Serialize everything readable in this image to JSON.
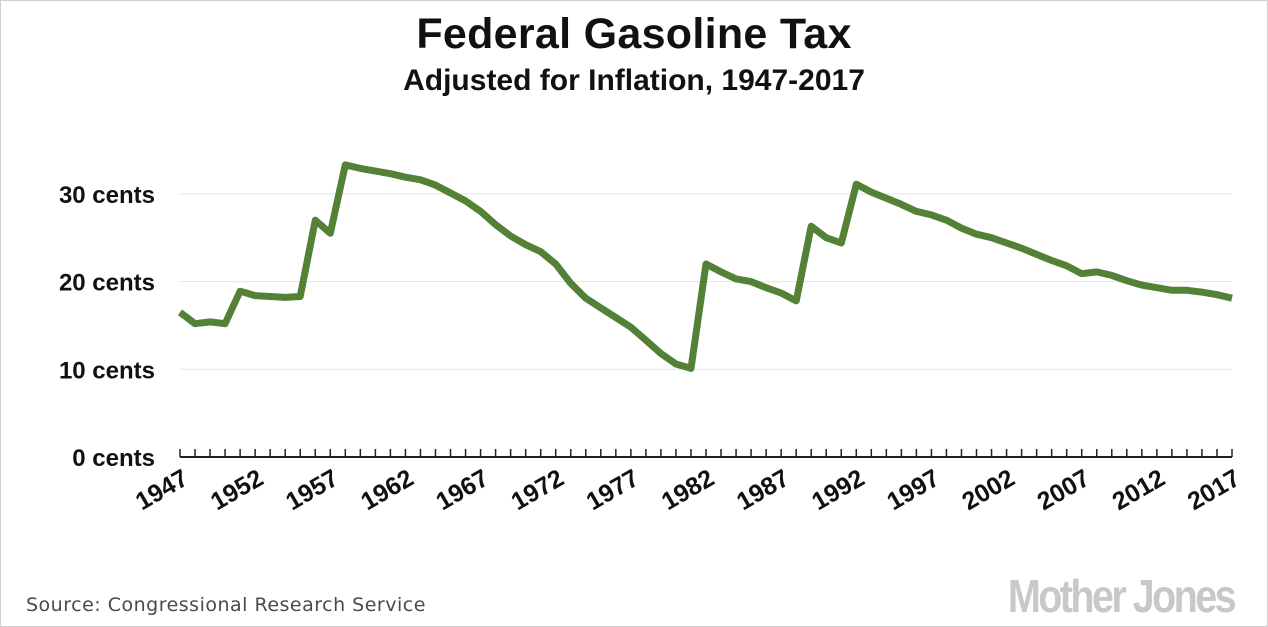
{
  "chart_data": {
    "type": "line",
    "title": "Federal Gasoline Tax",
    "subtitle": "Adjusted for Inflation, 1947-2017",
    "xlabel": "",
    "ylabel": "",
    "xlim": [
      1947,
      2017
    ],
    "ylim": [
      0,
      35
    ],
    "y_ticks": [
      {
        "value": 0,
        "label": "0 cents"
      },
      {
        "value": 10,
        "label": "10 cents"
      },
      {
        "value": 20,
        "label": "20 cents"
      },
      {
        "value": 30,
        "label": "30 cents"
      }
    ],
    "x_ticks": [
      {
        "value": 1947,
        "label": "1947"
      },
      {
        "value": 1952,
        "label": "1952"
      },
      {
        "value": 1957,
        "label": "1957"
      },
      {
        "value": 1962,
        "label": "1962"
      },
      {
        "value": 1967,
        "label": "1967"
      },
      {
        "value": 1972,
        "label": "1972"
      },
      {
        "value": 1977,
        "label": "1977"
      },
      {
        "value": 1982,
        "label": "1982"
      },
      {
        "value": 1987,
        "label": "1987"
      },
      {
        "value": 1992,
        "label": "1992"
      },
      {
        "value": 1997,
        "label": "1997"
      },
      {
        "value": 2002,
        "label": "2002"
      },
      {
        "value": 2007,
        "label": "2007"
      },
      {
        "value": 2012,
        "label": "2012"
      },
      {
        "value": 2017,
        "label": "2017"
      }
    ],
    "grid": true,
    "series": [
      {
        "name": "Federal gasoline tax (inflation-adjusted, cents)",
        "color": "#538135",
        "x": [
          1947,
          1948,
          1949,
          1950,
          1951,
          1952,
          1953,
          1954,
          1955,
          1956,
          1957,
          1958,
          1959,
          1960,
          1961,
          1962,
          1963,
          1964,
          1965,
          1966,
          1967,
          1968,
          1969,
          1970,
          1971,
          1972,
          1973,
          1974,
          1975,
          1976,
          1977,
          1978,
          1979,
          1980,
          1981,
          1982,
          1983,
          1984,
          1985,
          1986,
          1987,
          1988,
          1989,
          1990,
          1991,
          1992,
          1993,
          1994,
          1995,
          1996,
          1997,
          1998,
          1999,
          2000,
          2001,
          2002,
          2003,
          2004,
          2005,
          2006,
          2007,
          2008,
          2009,
          2010,
          2011,
          2012,
          2013,
          2014,
          2015,
          2016,
          2017
        ],
        "y": [
          16.5,
          15.2,
          15.4,
          15.2,
          18.9,
          18.4,
          18.3,
          18.2,
          18.3,
          27.0,
          25.5,
          33.3,
          32.9,
          32.6,
          32.3,
          31.9,
          31.6,
          31.0,
          30.1,
          29.2,
          28.0,
          26.5,
          25.2,
          24.2,
          23.4,
          22.0,
          19.8,
          18.1,
          17.0,
          15.9,
          14.8,
          13.3,
          11.8,
          10.6,
          10.1,
          22.0,
          21.1,
          20.3,
          20.0,
          19.3,
          18.7,
          17.8,
          26.3,
          25.0,
          24.4,
          31.1,
          30.2,
          29.5,
          28.8,
          28.0,
          27.6,
          27.0,
          26.1,
          25.4,
          25.0,
          24.4,
          23.8,
          23.1,
          22.4,
          21.8,
          20.9,
          21.1,
          20.7,
          20.1,
          19.6,
          19.3,
          19.0,
          19.0,
          18.8,
          18.5,
          18.1
        ]
      }
    ]
  },
  "footer": {
    "source": "Source: Congressional Research Service",
    "logo_text": "Mother Jones"
  }
}
